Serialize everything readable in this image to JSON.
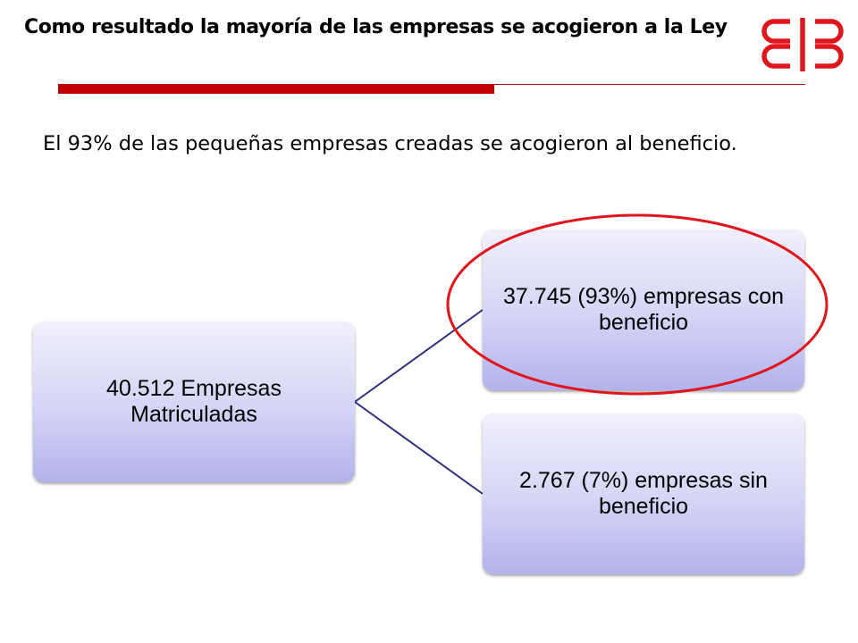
{
  "title": "Como resultado la mayoría de las empresas se acogieron a la Ley",
  "body_text": "El 93% de las pequeñas empresas creadas se acogieron al beneficio.",
  "diagram": {
    "root": {
      "label": "40.512 Empresas Matriculadas"
    },
    "children": [
      {
        "label": "37.745 (93%) empresas con beneficio",
        "highlighted": true
      },
      {
        "label": "2.767 (7%) empresas sin beneficio",
        "highlighted": false
      }
    ]
  },
  "colors": {
    "accent_red": "#c00000",
    "highlight_red": "#e0161e",
    "node_fill_top": "#f0f0fc",
    "node_fill_bottom": "#b3b2ec",
    "connector": "#2e2e7c"
  },
  "logo": {
    "icon": "brand-logo-icon"
  }
}
